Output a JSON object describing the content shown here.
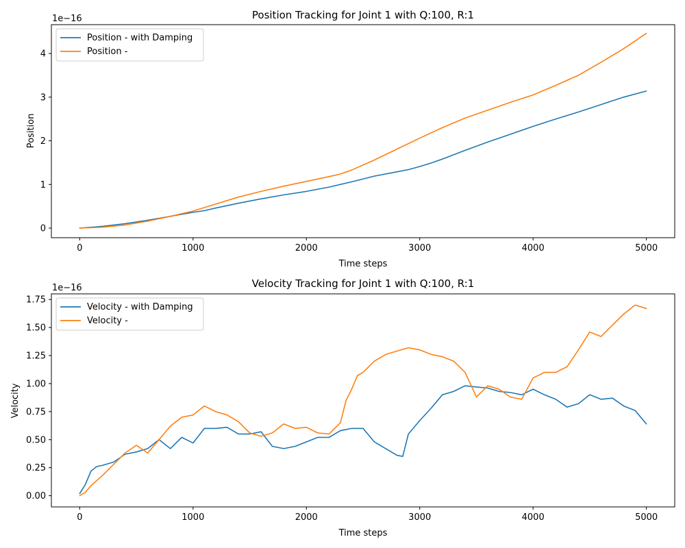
{
  "colors": {
    "series_1": "#1f77b4",
    "series_2": "#ff7f0e"
  },
  "chart_data": [
    {
      "type": "line",
      "title": "Position Tracking for Joint 1 with Q:100, R:1",
      "xlabel": "Time steps",
      "ylabel": "Position",
      "y_offset_label": "1e−16",
      "xlim": [
        -250,
        5250
      ],
      "ylim": [
        -0.22,
        4.66
      ],
      "xticks": [
        0,
        1000,
        2000,
        3000,
        4000,
        5000
      ],
      "xtick_labels": [
        "0",
        "1000",
        "2000",
        "3000",
        "4000",
        "5000"
      ],
      "yticks": [
        0,
        1,
        2,
        3,
        4
      ],
      "ytick_labels": [
        "0",
        "1",
        "2",
        "3",
        "4"
      ],
      "legend_position": "upper-left",
      "grid": false,
      "series": [
        {
          "name": "Position - with Damping",
          "x": [
            0,
            200,
            400,
            600,
            800,
            1000,
            1100,
            1200,
            1400,
            1600,
            1800,
            2000,
            2200,
            2400,
            2600,
            2800,
            2900,
            3000,
            3100,
            3200,
            3400,
            3600,
            3800,
            4000,
            4200,
            4400,
            4600,
            4800,
            5000
          ],
          "y": [
            0,
            0.04,
            0.1,
            0.18,
            0.27,
            0.36,
            0.4,
            0.46,
            0.57,
            0.67,
            0.76,
            0.84,
            0.94,
            1.06,
            1.19,
            1.29,
            1.34,
            1.41,
            1.49,
            1.58,
            1.78,
            1.97,
            2.15,
            2.33,
            2.5,
            2.66,
            2.83,
            3.0,
            3.14
          ]
        },
        {
          "name": "Position -",
          "x": [
            0,
            200,
            400,
            600,
            800,
            1000,
            1200,
            1400,
            1600,
            1800,
            2000,
            2200,
            2300,
            2400,
            2600,
            2800,
            3000,
            3200,
            3400,
            3600,
            3800,
            4000,
            4200,
            4400,
            4600,
            4800,
            5000
          ],
          "y": [
            0,
            0.02,
            0.07,
            0.16,
            0.27,
            0.39,
            0.55,
            0.71,
            0.84,
            0.96,
            1.07,
            1.18,
            1.24,
            1.33,
            1.56,
            1.81,
            2.06,
            2.3,
            2.52,
            2.7,
            2.88,
            3.05,
            3.27,
            3.5,
            3.8,
            4.11,
            4.46
          ]
        }
      ]
    },
    {
      "type": "line",
      "title": "Velocity Tracking for Joint 1 with Q:100, R:1",
      "xlabel": "Time steps",
      "ylabel": "Velocity",
      "y_offset_label": "1e−16",
      "xlim": [
        -250,
        5250
      ],
      "ylim": [
        -0.1,
        1.8
      ],
      "xticks": [
        0,
        1000,
        2000,
        3000,
        4000,
        5000
      ],
      "xtick_labels": [
        "0",
        "1000",
        "2000",
        "3000",
        "4000",
        "5000"
      ],
      "yticks": [
        0,
        0.25,
        0.5,
        0.75,
        1.0,
        1.25,
        1.5,
        1.75
      ],
      "ytick_labels": [
        "0.00",
        "0.25",
        "0.50",
        "0.75",
        "1.00",
        "1.25",
        "1.50",
        "1.75"
      ],
      "legend_position": "upper-left",
      "grid": false,
      "series": [
        {
          "name": "Velocity - with Damping",
          "x": [
            0,
            50,
            100,
            150,
            200,
            300,
            400,
            500,
            600,
            700,
            800,
            900,
            1000,
            1100,
            1200,
            1300,
            1400,
            1500,
            1600,
            1700,
            1800,
            1900,
            2000,
            2100,
            2200,
            2300,
            2400,
            2500,
            2600,
            2700,
            2800,
            2850,
            2900,
            3000,
            3100,
            3200,
            3300,
            3400,
            3500,
            3600,
            3700,
            3800,
            3900,
            4000,
            4100,
            4200,
            4300,
            4400,
            4500,
            4600,
            4700,
            4800,
            4900,
            5000
          ],
          "y": [
            0.02,
            0.1,
            0.22,
            0.26,
            0.27,
            0.3,
            0.37,
            0.39,
            0.42,
            0.5,
            0.42,
            0.52,
            0.47,
            0.6,
            0.6,
            0.61,
            0.55,
            0.55,
            0.57,
            0.44,
            0.42,
            0.44,
            0.48,
            0.52,
            0.52,
            0.58,
            0.6,
            0.6,
            0.48,
            0.42,
            0.36,
            0.35,
            0.55,
            0.67,
            0.78,
            0.9,
            0.93,
            0.98,
            0.97,
            0.96,
            0.93,
            0.92,
            0.9,
            0.95,
            0.9,
            0.86,
            0.79,
            0.82,
            0.9,
            0.86,
            0.87,
            0.8,
            0.76,
            0.64
          ]
        },
        {
          "name": "Velocity -",
          "x": [
            0,
            50,
            100,
            200,
            300,
            400,
            500,
            600,
            700,
            800,
            900,
            1000,
            1100,
            1200,
            1300,
            1400,
            1500,
            1600,
            1700,
            1800,
            1900,
            2000,
            2100,
            2200,
            2300,
            2350,
            2400,
            2450,
            2500,
            2600,
            2700,
            2800,
            2900,
            3000,
            3100,
            3200,
            3300,
            3400,
            3500,
            3600,
            3700,
            3800,
            3900,
            4000,
            4100,
            4200,
            4300,
            4400,
            4500,
            4600,
            4700,
            4800,
            4900,
            5000
          ],
          "y": [
            0.0,
            0.03,
            0.09,
            0.18,
            0.28,
            0.38,
            0.45,
            0.38,
            0.5,
            0.62,
            0.7,
            0.72,
            0.8,
            0.75,
            0.72,
            0.66,
            0.56,
            0.53,
            0.56,
            0.64,
            0.6,
            0.61,
            0.56,
            0.55,
            0.65,
            0.85,
            0.95,
            1.07,
            1.1,
            1.2,
            1.26,
            1.29,
            1.32,
            1.3,
            1.26,
            1.24,
            1.2,
            1.1,
            0.88,
            0.98,
            0.95,
            0.88,
            0.86,
            1.05,
            1.1,
            1.1,
            1.15,
            1.3,
            1.46,
            1.42,
            1.52,
            1.62,
            1.7,
            1.67
          ]
        }
      ]
    }
  ]
}
